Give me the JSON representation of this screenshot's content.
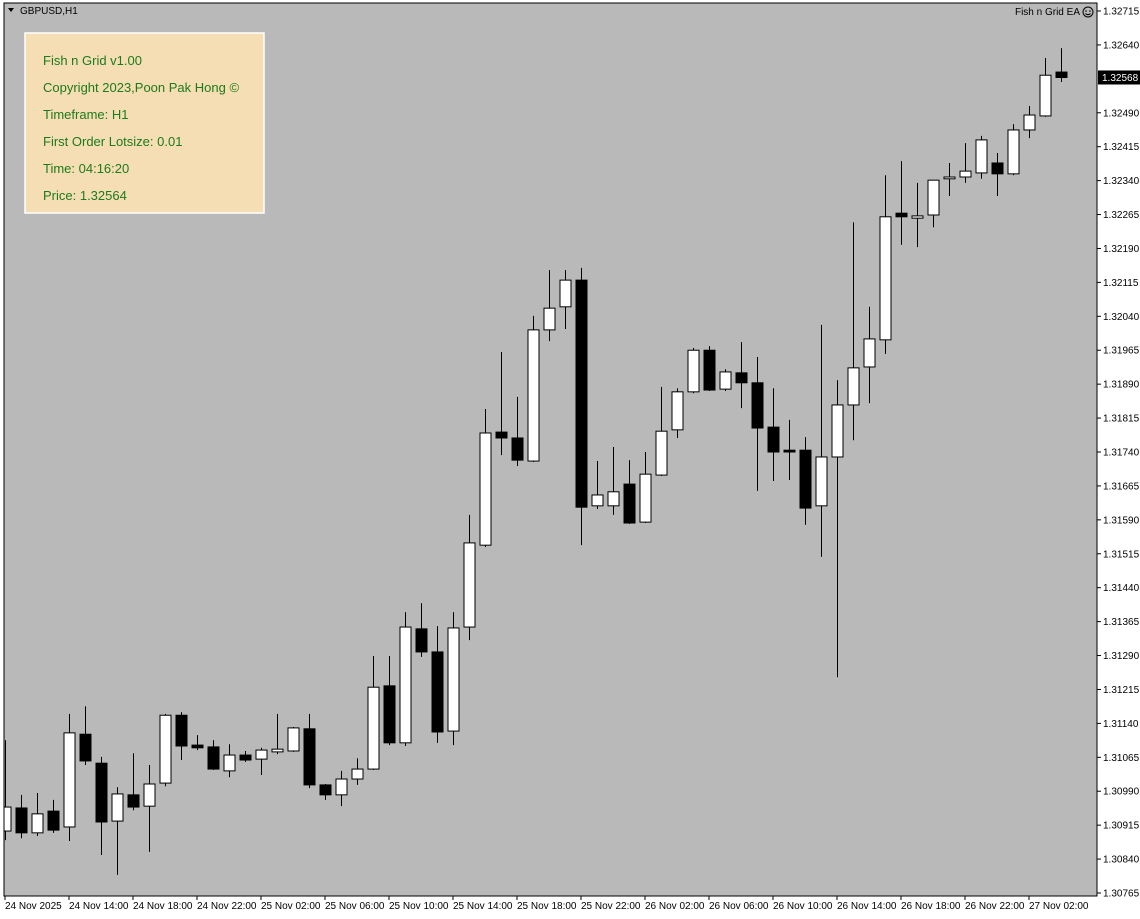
{
  "symbol": "GBPUSD,H1",
  "ea_label": "Fish n Grid EA",
  "panel": {
    "lines": [
      "Fish n Grid v1.00",
      "Copyright 2023,Poon Pak Hong ©",
      "Timeframe: H1",
      "First Order Lotsize: 0.01",
      "Time: 04:16:20",
      "Price: 1.32564"
    ]
  },
  "chart_data": {
    "type": "candlestick",
    "categories": [
      "24 Nov 2025",
      null,
      null,
      null,
      "24 Nov 14:00",
      null,
      null,
      null,
      "24 Nov 18:00",
      null,
      null,
      null,
      "24 Nov 22:00",
      null,
      null,
      null,
      "25 Nov 02:00",
      null,
      null,
      null,
      "25 Nov 06:00",
      null,
      null,
      null,
      "25 Nov 10:00",
      null,
      null,
      null,
      "25 Nov 14:00",
      null,
      null,
      null,
      "25 Nov 18:00",
      null,
      null,
      null,
      "25 Nov 22:00",
      null,
      null,
      null,
      "26 Nov 02:00",
      null,
      null,
      null,
      "26 Nov 06:00",
      null,
      null,
      null,
      "26 Nov 10:00",
      null,
      null,
      null,
      "26 Nov 14:00",
      null,
      null,
      null,
      "26 Nov 18:00",
      null,
      null,
      null,
      "26 Nov 22:00",
      null,
      null,
      null,
      "27 Nov 02:00",
      null,
      null
    ],
    "open": [
      1.30902,
      1.30953,
      1.30898,
      1.30946,
      1.30911,
      1.31116,
      1.31052,
      1.30924,
      1.30982,
      1.30957,
      1.31008,
      1.31158,
      1.31092,
      1.31088,
      1.31035,
      1.3107,
      1.31061,
      1.31077,
      1.31079,
      1.31128,
      1.31004,
      1.30982,
      1.31017,
      1.31039,
      1.31223,
      1.31097,
      1.31349,
      1.31298,
      1.31123,
      1.31353,
      1.31534,
      1.31784,
      1.31771,
      1.3172,
      1.3201,
      1.32061,
      1.3212,
      1.31621,
      1.31621,
      1.31669,
      1.31585,
      1.31689,
      1.31789,
      1.31873,
      1.31965,
      1.31879,
      1.31915,
      1.31893,
      1.31795,
      1.31744,
      1.31744,
      1.31621,
      1.31729,
      1.31844,
      1.31928,
      1.31988,
      1.32268,
      1.32257,
      1.32264,
      1.32344,
      1.32348,
      1.32357,
      1.32379,
      1.32355,
      1.32452,
      1.32483,
      1.3258
    ],
    "high": [
      1.31103,
      1.30982,
      1.30986,
      1.30971,
      1.31161,
      1.31178,
      1.31066,
      1.30999,
      1.31074,
      1.31048,
      1.31161,
      1.31165,
      1.31114,
      1.31103,
      1.31094,
      1.31079,
      1.31086,
      1.31161,
      1.31132,
      1.31161,
      1.31006,
      1.31035,
      1.31063,
      1.31289,
      1.31289,
      1.31386,
      1.31406,
      1.31355,
      1.31386,
      1.31601,
      1.31835,
      1.31961,
      1.31862,
      1.32041,
      1.32142,
      1.32142,
      1.32147,
      1.3172,
      1.31751,
      1.31722,
      1.3174,
      1.31884,
      1.31881,
      1.3197,
      1.31974,
      1.31923,
      1.31983,
      1.3195,
      1.31881,
      1.31811,
      1.31773,
      1.32021,
      1.31899,
      1.32248,
      1.32061,
      1.32352,
      1.32383,
      1.32335,
      1.32341,
      1.32379,
      1.32423,
      1.32439,
      1.32401,
      1.32465,
      1.32505,
      1.32611,
      1.32633
    ],
    "low": [
      1.30882,
      1.30886,
      1.30891,
      1.30898,
      1.3088,
      1.31048,
      1.30849,
      1.30805,
      1.30948,
      1.30856,
      1.31001,
      1.31059,
      1.31081,
      1.31037,
      1.31021,
      1.31055,
      1.31026,
      1.31072,
      1.31077,
      1.30997,
      1.30971,
      1.30957,
      1.31004,
      1.31037,
      1.31092,
      1.3109,
      1.31287,
      1.31097,
      1.31092,
      1.31324,
      1.3153,
      1.31733,
      1.31709,
      1.31718,
      1.31985,
      1.32012,
      1.31534,
      1.31614,
      1.31601,
      1.31581,
      1.31583,
      1.31687,
      1.31771,
      1.3187,
      1.31875,
      1.31875,
      1.31837,
      1.31654,
      1.31676,
      1.31678,
      1.31579,
      1.31508,
      1.31242,
      1.31766,
      1.31848,
      1.31957,
      1.32198,
      1.32193,
      1.32237,
      1.32306,
      1.32335,
      1.32344,
      1.32306,
      1.32352,
      1.32434,
      1.32481,
      1.32558
    ],
    "close": [
      1.30955,
      1.30898,
      1.3094,
      1.30904,
      1.31119,
      1.31057,
      1.30922,
      1.30984,
      1.30955,
      1.31006,
      1.31158,
      1.3109,
      1.31086,
      1.31039,
      1.3107,
      1.31059,
      1.31081,
      1.31083,
      1.3113,
      1.31004,
      1.30982,
      1.31017,
      1.31039,
      1.3122,
      1.31097,
      1.31353,
      1.31298,
      1.31121,
      1.31351,
      1.31539,
      1.31782,
      1.31771,
      1.31722,
      1.3201,
      1.32058,
      1.3212,
      1.31618,
      1.31645,
      1.31652,
      1.31583,
      1.31691,
      1.31786,
      1.31873,
      1.31965,
      1.31877,
      1.31917,
      1.31893,
      1.31793,
      1.3174,
      1.3174,
      1.31616,
      1.31729,
      1.31844,
      1.31926,
      1.3199,
      1.3226,
      1.3226,
      1.32262,
      1.32341,
      1.32348,
      1.32361,
      1.3243,
      1.32355,
      1.32452,
      1.32485,
      1.32573,
      1.32568
    ],
    "last_price": 1.32568,
    "up_color": "#ffffff",
    "down_color": "#000000",
    "background": "#b9b9b9",
    "ylim": [
      1.30765,
      1.32715
    ],
    "yticks": [
      1.32715,
      {
        "value": 1.3264,
        "label": "1.32640"
      },
      {
        "value": 1.3249,
        "label": "1.32490"
      },
      1.32415,
      {
        "value": 1.3234,
        "label": "1.32340"
      },
      1.32265,
      {
        "value": 1.3219,
        "label": "1.32190"
      },
      1.32115,
      {
        "value": 1.3204,
        "label": "1.32040"
      },
      1.31965,
      {
        "value": 1.3189,
        "label": "1.31890"
      },
      1.31815,
      {
        "value": 1.3174,
        "label": "1.31740"
      },
      1.31665,
      {
        "value": 1.3159,
        "label": "1.31590"
      },
      1.31515,
      {
        "value": 1.3144,
        "label": "1.31440"
      },
      1.31365,
      {
        "value": 1.3129,
        "label": "1.31290"
      },
      1.31215,
      {
        "value": 1.3114,
        "label": "1.31140"
      },
      1.31065,
      {
        "value": 1.3099,
        "label": "1.30990"
      },
      1.30915,
      {
        "value": 1.3084,
        "label": "1.30840"
      },
      1.30765
    ],
    "grid": false
  }
}
